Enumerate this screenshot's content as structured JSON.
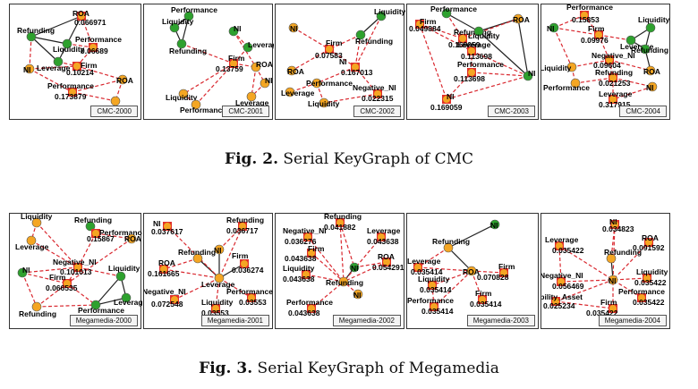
{
  "colors": {
    "green": "#2ea12e",
    "orange": "#f4a623",
    "red": "#e0302a",
    "edge_red": "#d9282f",
    "edge_black": "#222222"
  },
  "figures": [
    {
      "caption_label": "Fig. 2.",
      "caption_text": "Serial KeyGraph of CMC",
      "panels": [
        {
          "label": "CMC-2000",
          "nodes": [
            {
              "name": "ROA",
              "value": "0.066971",
              "color": "red"
            },
            {
              "name": "Refunding",
              "value": "",
              "color": "green"
            },
            {
              "name": "Liquidity",
              "value": "",
              "color": "green"
            },
            {
              "name": "Performance",
              "value": "0.06689",
              "color": "red"
            },
            {
              "name": "Leverage",
              "value": "",
              "color": "green"
            },
            {
              "name": "NI",
              "value": "",
              "color": "orange"
            },
            {
              "name": "Firm",
              "value": "0.10214",
              "color": "red"
            },
            {
              "name": "ROA",
              "value": "",
              "color": "orange"
            },
            {
              "name": "Performance",
              "value": "0.173879",
              "color": "red"
            },
            {
              "name": "",
              "value": "",
              "color": "orange"
            }
          ]
        },
        {
          "label": "CMC-2001",
          "nodes": [
            {
              "name": "Performance",
              "value": "",
              "color": "green"
            },
            {
              "name": "Liquidity",
              "value": "",
              "color": "green"
            },
            {
              "name": "NI",
              "value": "",
              "color": "green"
            },
            {
              "name": "Leverage",
              "value": "",
              "color": "green"
            },
            {
              "name": "Refunding",
              "value": "",
              "color": "green"
            },
            {
              "name": "Firm",
              "value": "0.13759",
              "color": "red"
            },
            {
              "name": "ROA",
              "value": "",
              "color": "orange"
            },
            {
              "name": "NI",
              "value": "",
              "color": "orange"
            },
            {
              "name": "Liquidity",
              "value": "",
              "color": "orange"
            },
            {
              "name": "Leverage",
              "value": "",
              "color": "orange"
            },
            {
              "name": "Performance",
              "value": "",
              "color": "orange"
            }
          ]
        },
        {
          "label": "CMC-2002",
          "nodes": [
            {
              "name": "Liquidity",
              "value": "",
              "color": "green"
            },
            {
              "name": "NI",
              "value": "",
              "color": "orange"
            },
            {
              "name": "Refunding",
              "value": "",
              "color": "green"
            },
            {
              "name": "Firm",
              "value": "0.07583",
              "color": "red"
            },
            {
              "name": "ROA",
              "value": "",
              "color": "orange"
            },
            {
              "name": "NI",
              "value": "0.167013",
              "color": "red"
            },
            {
              "name": "Performance",
              "value": "",
              "color": "orange"
            },
            {
              "name": "Leverage",
              "value": "",
              "color": "orange"
            },
            {
              "name": "Negative_NI",
              "value": "0.022315",
              "color": "red"
            },
            {
              "name": "Liquidity",
              "value": "",
              "color": "orange"
            }
          ]
        },
        {
          "label": "CMC-2003",
          "nodes": [
            {
              "name": "Performance",
              "value": "",
              "color": "green"
            },
            {
              "name": "Firm",
              "value": "0.049884",
              "color": "red"
            },
            {
              "name": "Refunding",
              "value": "0.169059",
              "color": "red"
            },
            {
              "name": "Liquidity",
              "value": "",
              "color": "green"
            },
            {
              "name": "ROA",
              "value": "",
              "color": "orange"
            },
            {
              "name": "Leverage",
              "value": "0.113698",
              "color": "red"
            },
            {
              "name": "Performance",
              "value": "0.113698",
              "color": "red"
            },
            {
              "name": "NI",
              "value": "",
              "color": "green"
            },
            {
              "name": "NI",
              "value": "0.169059",
              "color": "red"
            }
          ]
        },
        {
          "label": "CMC-2004",
          "nodes": [
            {
              "name": "Performance",
              "value": "0.15853",
              "color": "red"
            },
            {
              "name": "NI",
              "value": "",
              "color": "green"
            },
            {
              "name": "Firm",
              "value": "0.09976",
              "color": "red"
            },
            {
              "name": "Liquidity",
              "value": "",
              "color": "green"
            },
            {
              "name": "Leverage",
              "value": "",
              "color": "green"
            },
            {
              "name": "Refunding",
              "value": "",
              "color": "green"
            },
            {
              "name": "Liquidity",
              "value": "",
              "color": "orange"
            },
            {
              "name": "Negative_NI",
              "value": "0.09604",
              "color": "red"
            },
            {
              "name": "ROA",
              "value": "",
              "color": "orange"
            },
            {
              "name": "Refunding",
              "value": "0.021253",
              "color": "red"
            },
            {
              "name": "Performance",
              "value": "",
              "color": "orange"
            },
            {
              "name": "NI",
              "value": "",
              "color": "orange"
            },
            {
              "name": "Leverage",
              "value": "0.317915",
              "color": "red"
            }
          ]
        }
      ]
    },
    {
      "caption_label": "Fig. 3.",
      "caption_text": "Serial KeyGraph of Megamedia",
      "panels": [
        {
          "label": "Megamedia-2000",
          "nodes": [
            {
              "name": "Liquidity",
              "value": "",
              "color": "orange"
            },
            {
              "name": "Refunding",
              "value": "",
              "color": "green"
            },
            {
              "name": "Performance",
              "value": "0.15867",
              "color": "red"
            },
            {
              "name": "Leverage",
              "value": "",
              "color": "orange"
            },
            {
              "name": "ROA",
              "value": "",
              "color": "orange"
            },
            {
              "name": "NI",
              "value": "",
              "color": "green"
            },
            {
              "name": "Negative_NI",
              "value": "0.101013",
              "color": "red"
            },
            {
              "name": "Firm",
              "value": "0.066535",
              "color": "red"
            },
            {
              "name": "Liquidity",
              "value": "",
              "color": "green"
            },
            {
              "name": "Leverage",
              "value": "",
              "color": "green"
            },
            {
              "name": "Refunding",
              "value": "",
              "color": "orange"
            },
            {
              "name": "Performance",
              "value": "",
              "color": "green"
            }
          ]
        },
        {
          "label": "Megamedia-2001",
          "nodes": [
            {
              "name": "NI",
              "value": "0.037617",
              "color": "red"
            },
            {
              "name": "Refunding",
              "value": "0.036717",
              "color": "red"
            },
            {
              "name": "NI",
              "value": "",
              "color": "orange"
            },
            {
              "name": "Refunding",
              "value": "",
              "color": "orange"
            },
            {
              "name": "Firm",
              "value": "0.036274",
              "color": "red"
            },
            {
              "name": "ROA",
              "value": "0.161665",
              "color": "red"
            },
            {
              "name": "Leverage",
              "value": "",
              "color": "orange"
            },
            {
              "name": "Negative_NI",
              "value": "0.072548",
              "color": "red"
            },
            {
              "name": "Liquidity",
              "value": "0.03553",
              "color": "red"
            },
            {
              "name": "Performance",
              "value": "0.03553",
              "color": "red"
            }
          ]
        },
        {
          "label": "Megamedia-2002",
          "nodes": [
            {
              "name": "Refunding",
              "value": "0.041882",
              "color": "red"
            },
            {
              "name": "Negative_NI",
              "value": "0.036276",
              "color": "red"
            },
            {
              "name": "Leverage",
              "value": "0.043638",
              "color": "red"
            },
            {
              "name": "Firm",
              "value": "0.043638",
              "color": "red"
            },
            {
              "name": "ROA",
              "value": "0.054291",
              "color": "red"
            },
            {
              "name": "NI",
              "value": "",
              "color": "green"
            },
            {
              "name": "Liquidity",
              "value": "0.043638",
              "color": "red"
            },
            {
              "name": "Refunding",
              "value": "",
              "color": "orange"
            },
            {
              "name": "NI",
              "value": "",
              "color": "orange"
            },
            {
              "name": "Performance",
              "value": "0.043638",
              "color": "red"
            }
          ]
        },
        {
          "label": "Megamedia-2003",
          "nodes": [
            {
              "name": "NI",
              "value": "",
              "color": "green"
            },
            {
              "name": "Refunding",
              "value": "",
              "color": "orange"
            },
            {
              "name": "Leverage",
              "value": "0.035414",
              "color": "red"
            },
            {
              "name": "ROA",
              "value": "",
              "color": "orange"
            },
            {
              "name": "Firm",
              "value": "0.070828",
              "color": "red"
            },
            {
              "name": "Liquidity",
              "value": "0.035414",
              "color": "red"
            },
            {
              "name": "Firm",
              "value": "0.035414",
              "color": "red"
            },
            {
              "name": "Performance",
              "value": "0.035414",
              "color": "red"
            }
          ]
        },
        {
          "label": "Megamedia-2004",
          "nodes": [
            {
              "name": "NI",
              "value": "0.034823",
              "color": "red"
            },
            {
              "name": "Leverage",
              "value": "0.035422",
              "color": "red"
            },
            {
              "name": "ROA",
              "value": "0.091592",
              "color": "red"
            },
            {
              "name": "Refunding",
              "value": "",
              "color": "orange"
            },
            {
              "name": "Negative_NI",
              "value": "0.056469",
              "color": "red"
            },
            {
              "name": "NI",
              "value": "",
              "color": "orange"
            },
            {
              "name": "Liquidity",
              "value": "0.035422",
              "color": "red"
            },
            {
              "name": "Liability_Asset",
              "value": "0.025234",
              "color": "red"
            },
            {
              "name": "Performance",
              "value": "0.035422",
              "color": "red"
            },
            {
              "name": "Firm",
              "value": "0.035422",
              "color": "red"
            }
          ]
        }
      ]
    }
  ]
}
